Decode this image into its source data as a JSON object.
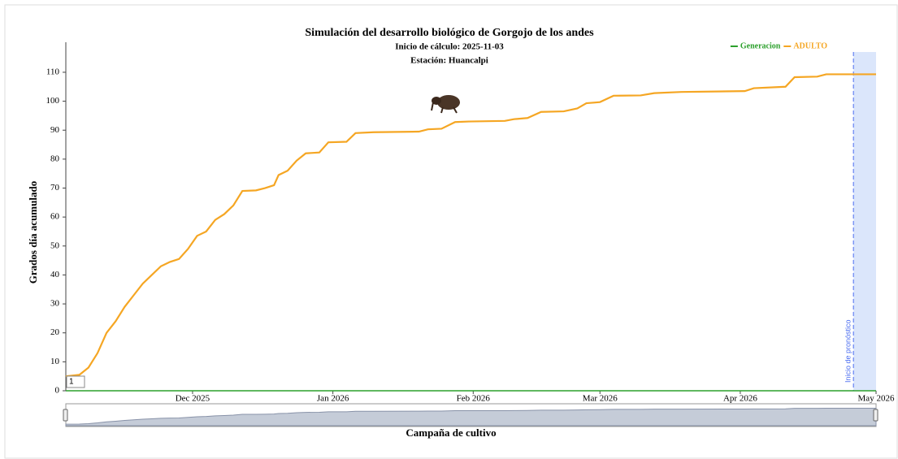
{
  "chart_data": {
    "type": "line",
    "title": "Simulación del desarrollo biológico de Gorgojo de los andes",
    "subtitle": [
      "Inicio de cálculo: 2025-11-03",
      "Estación: Huancalpi"
    ],
    "ylabel": "Grados día acumulado",
    "xlabel": "Campaña de cultivo",
    "legend": "top-right",
    "x": [
      "2025-11-03",
      "2025-11-06",
      "2025-11-08",
      "2025-11-10",
      "2025-11-12",
      "2025-11-14",
      "2025-11-16",
      "2025-11-18",
      "2025-11-20",
      "2025-11-22",
      "2025-11-24",
      "2025-11-26",
      "2025-11-28",
      "2025-11-30",
      "2025-12-02",
      "2025-12-04",
      "2025-12-06",
      "2025-12-08",
      "2025-12-10",
      "2025-12-12",
      "2025-12-15",
      "2025-12-17",
      "2025-12-19",
      "2025-12-20",
      "2025-12-22",
      "2025-12-24",
      "2025-12-26",
      "2025-12-29",
      "2025-12-31",
      "2026-01-04",
      "2026-01-06",
      "2026-01-10",
      "2026-01-20",
      "2026-01-22",
      "2026-01-25",
      "2026-01-28",
      "2026-01-31",
      "2026-02-08",
      "2026-02-10",
      "2026-02-13",
      "2026-02-16",
      "2026-02-21",
      "2026-02-24",
      "2026-02-26",
      "2026-03-01",
      "2026-03-04",
      "2026-03-10",
      "2026-03-13",
      "2026-03-19",
      "2026-04-02",
      "2026-04-04",
      "2026-04-11",
      "2026-04-13",
      "2026-04-18",
      "2026-04-20",
      "2026-05-01"
    ],
    "series": [
      {
        "name": "Generacion",
        "color": "#2ca02c",
        "values": [
          0,
          0,
          0,
          0,
          0,
          0,
          0,
          0,
          0,
          0,
          0,
          0,
          0,
          0,
          0,
          0,
          0,
          0,
          0,
          0,
          0,
          0,
          0,
          0,
          0,
          0,
          0,
          0,
          0,
          0,
          0,
          0,
          0,
          0,
          0,
          0,
          0,
          0,
          0,
          0,
          0,
          0,
          0,
          0,
          0,
          0,
          0,
          0,
          0,
          0,
          0,
          0,
          0,
          0,
          0,
          0
        ]
      },
      {
        "name": "ADULTO",
        "color": "#f5a623",
        "values": [
          5,
          5.5,
          8,
          13,
          20,
          24,
          29,
          33,
          37,
          40,
          43,
          44.5,
          45.5,
          49,
          53.5,
          55,
          59,
          61,
          64,
          69,
          69.2,
          70,
          71,
          74.5,
          76,
          79.5,
          82,
          82.3,
          85.8,
          86,
          89,
          89.3,
          89.5,
          90.3,
          90.5,
          92.8,
          93,
          93.2,
          93.8,
          94.2,
          96.3,
          96.5,
          97.5,
          99.3,
          99.7,
          101.9,
          102,
          102.8,
          103.2,
          103.5,
          104.5,
          105,
          108.3,
          108.5,
          109.3,
          109.3
        ]
      }
    ],
    "xlim": [
      "2025-11-03",
      "2026-05-01"
    ],
    "xticks": [
      {
        "value": "2025-12-01",
        "label": "Dec 2025"
      },
      {
        "value": "2026-01-01",
        "label": "Jan 2026"
      },
      {
        "value": "2026-02-01",
        "label": "Feb 2026"
      },
      {
        "value": "2026-03-01",
        "label": "Mar 2026"
      },
      {
        "value": "2026-04-01",
        "label": "Apr 2026"
      },
      {
        "value": "2026-05-01",
        "label": "May 2026"
      }
    ],
    "ylim": [
      0,
      117
    ],
    "yticks": [
      0,
      10,
      20,
      30,
      40,
      50,
      60,
      70,
      80,
      90,
      100,
      110
    ],
    "forecast": {
      "start": "2026-04-26",
      "label": "Inicio de pronóstico",
      "color": "#dbe6fb"
    },
    "marker_label": "1"
  }
}
